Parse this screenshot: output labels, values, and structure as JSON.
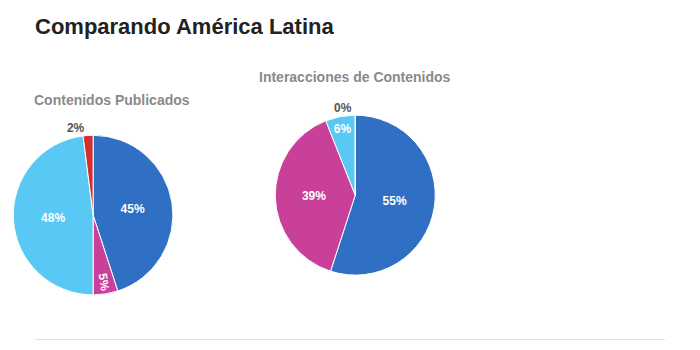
{
  "title": "Comparando América Latina",
  "chart_data": [
    {
      "type": "pie",
      "title": "Contenidos Publicados",
      "values": [
        45,
        5,
        48,
        2
      ],
      "value_labels": [
        "45%",
        "5%",
        "48%",
        "2%"
      ],
      "colors": [
        "#2f6fc4",
        "#c8409a",
        "#5ac8f4",
        "#d32f2f"
      ],
      "data_labels": true
    },
    {
      "type": "pie",
      "title": "Interacciones de Contenidos",
      "values": [
        55,
        39,
        6,
        0
      ],
      "value_labels": [
        "55%",
        "39%",
        "6%",
        "0%"
      ],
      "colors": [
        "#2f6fc4",
        "#c8409a",
        "#5ac8f4",
        "#d32f2f"
      ],
      "data_labels": true
    }
  ]
}
